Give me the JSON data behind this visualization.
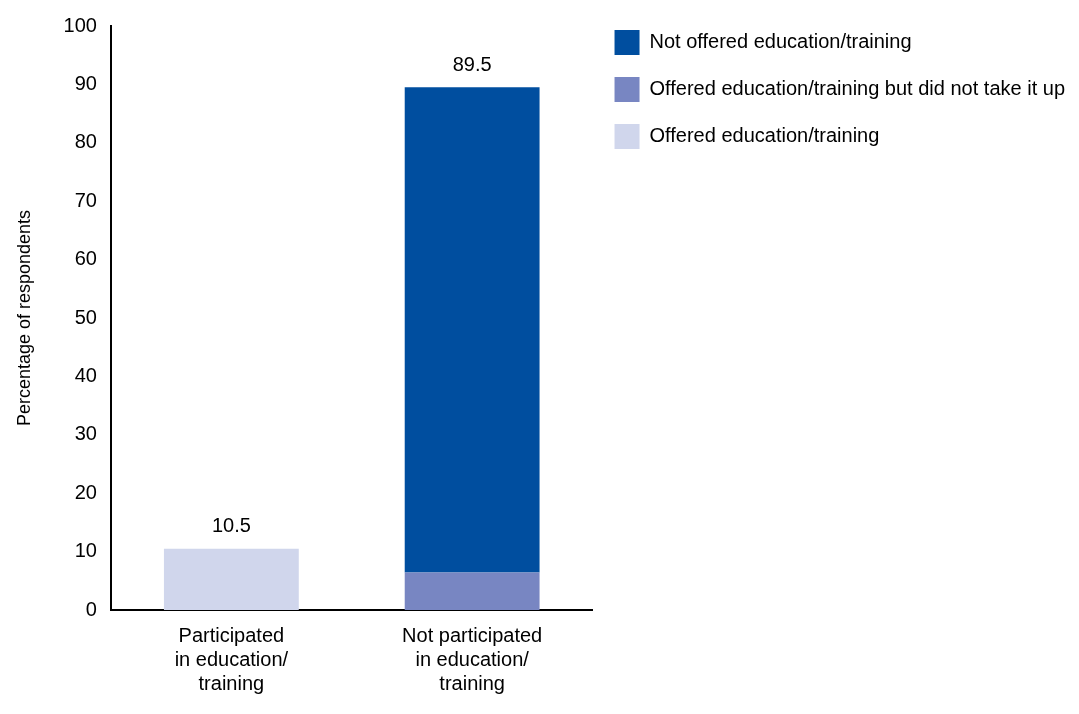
{
  "chart_data": {
    "type": "bar",
    "stacked": true,
    "categories": [
      "Participated\nin education/\ntraining",
      "Not participated\nin education/\ntraining"
    ],
    "series": [
      {
        "name": "Offered education/training",
        "color": "#d0d6ec",
        "values": [
          10.5,
          null
        ]
      },
      {
        "name": "Offered education/training but did not take it up",
        "color": "#7886c2",
        "values": [
          null,
          6.4
        ]
      },
      {
        "name": "Not offered education/training",
        "color": "#004e9f",
        "values": [
          null,
          83.1
        ]
      }
    ],
    "totals": [
      "10.5",
      "89.5"
    ],
    "ylabel": "Percentage of respondents",
    "ylim": [
      0,
      100
    ],
    "yticks": [
      0,
      10,
      20,
      30,
      40,
      50,
      60,
      70,
      80,
      90,
      100
    ],
    "grid": false,
    "legend": "top right"
  }
}
